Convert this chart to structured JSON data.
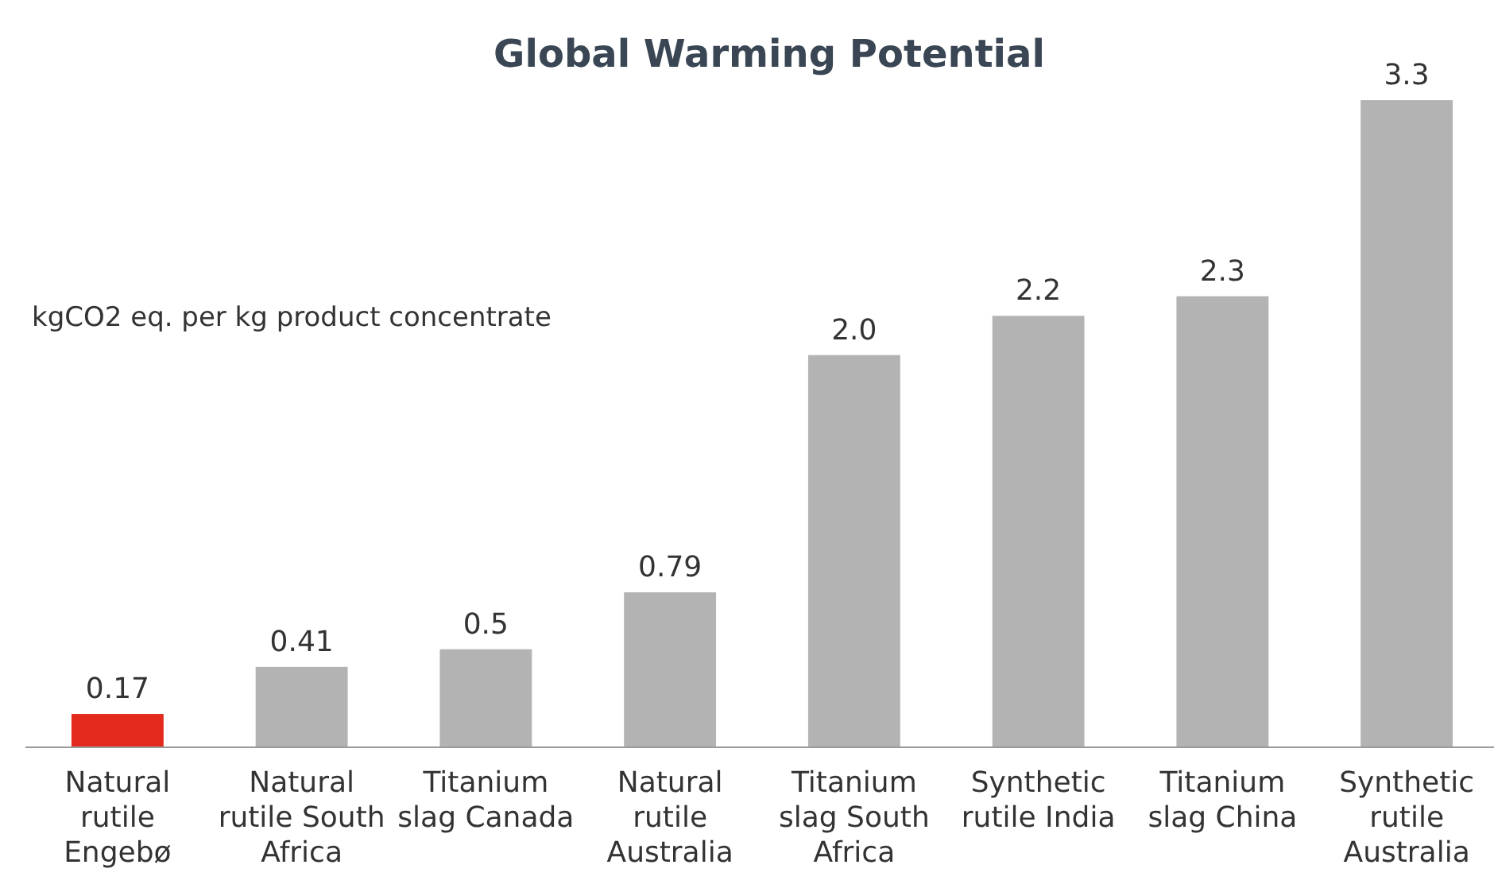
{
  "chart_data": {
    "type": "bar",
    "title": "Global Warming Potential",
    "ylabel": "kgCO2 eq. per kg product concentrate",
    "categories": [
      "Natural rutile Engebø",
      "Natural rutile South Africa",
      "Titanium slag Canada",
      "Natural rutile Australia",
      "Titanium slag South Africa",
      "Synthetic rutile India",
      "Titanium slag China",
      "Synthetic rutile Australia"
    ],
    "values": [
      0.17,
      0.41,
      0.5,
      0.79,
      2.0,
      2.2,
      2.3,
      3.3
    ],
    "value_labels": [
      "0.17",
      "0.41",
      "0.5",
      "0.79",
      "2.0",
      "2.2",
      "2.3",
      "3.3"
    ],
    "colors": [
      "#e32a1c",
      "#b3b3b3",
      "#b3b3b3",
      "#b3b3b3",
      "#b3b3b3",
      "#b3b3b3",
      "#b3b3b3",
      "#b3b3b3"
    ]
  }
}
